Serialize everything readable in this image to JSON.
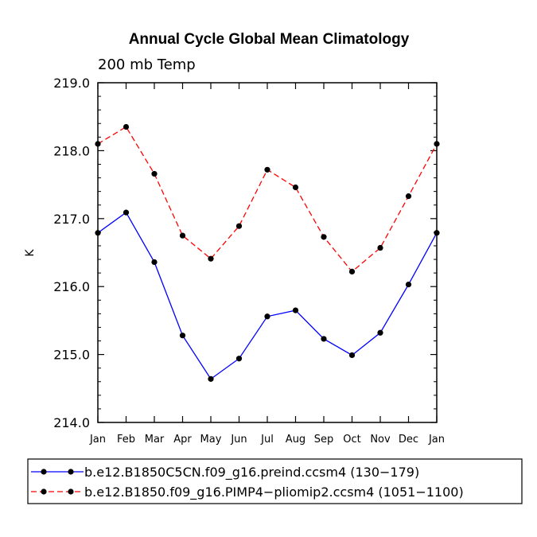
{
  "chart_data": {
    "type": "line",
    "title": "Annual Cycle Global Mean Climatology",
    "subtitle": "200 mb Temp",
    "xlabel": "",
    "ylabel": "K",
    "categories": [
      "Jan",
      "Feb",
      "Mar",
      "Apr",
      "May",
      "Jun",
      "Jul",
      "Aug",
      "Sep",
      "Oct",
      "Nov",
      "Dec",
      "Jan"
    ],
    "ylim": [
      214.0,
      219.0
    ],
    "yticks": [
      "214.0",
      "215.0",
      "216.0",
      "217.0",
      "218.0",
      "219.0"
    ],
    "grid": false,
    "legend_position": "bottom",
    "series": [
      {
        "name": "b.e12.B1850C5CN.f09_g16.preind.ccsm4 (130−179)",
        "color": "#0000ff",
        "dash": "solid",
        "values": [
          216.79,
          217.09,
          216.36,
          215.28,
          214.64,
          214.94,
          215.56,
          215.65,
          215.23,
          214.99,
          215.32,
          216.03,
          216.79
        ]
      },
      {
        "name": "b.e12.B1850.f09_g16.PIMP4−pliomip2.ccsm4 (1051−1100)",
        "color": "#ff0000",
        "dash": "dashed",
        "values": [
          218.1,
          218.35,
          217.66,
          216.75,
          216.41,
          216.89,
          217.72,
          217.46,
          216.73,
          216.22,
          216.57,
          217.33,
          218.1
        ]
      }
    ]
  }
}
